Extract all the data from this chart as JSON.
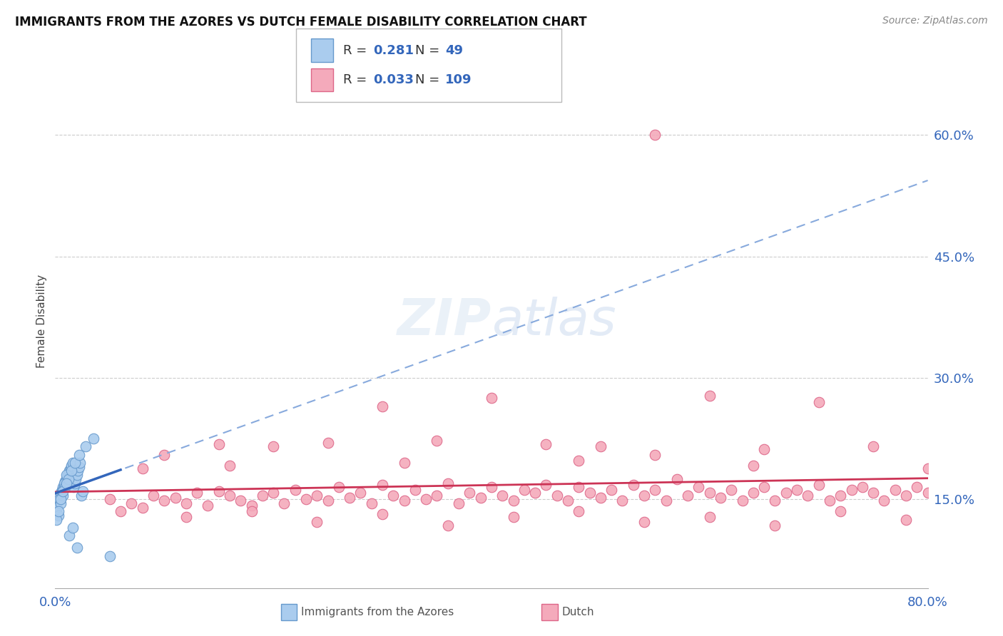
{
  "title": "IMMIGRANTS FROM THE AZORES VS DUTCH FEMALE DISABILITY CORRELATION CHART",
  "source": "Source: ZipAtlas.com",
  "ylabel": "Female Disability",
  "xlim": [
    0.0,
    0.8
  ],
  "ylim": [
    0.04,
    0.7
  ],
  "ytick_positions": [
    0.15,
    0.3,
    0.45,
    0.6
  ],
  "ytick_labels": [
    "15.0%",
    "30.0%",
    "45.0%",
    "60.0%"
  ],
  "series1_color": "#aaccee",
  "series1_edgecolor": "#6699cc",
  "series2_color": "#f4aabb",
  "series2_edgecolor": "#dd6688",
  "series1_R": 0.281,
  "series1_N": 49,
  "series2_R": 0.033,
  "series2_N": 109,
  "series1_label": "Immigrants from the Azores",
  "series2_label": "Dutch",
  "legend_color": "#3366bb",
  "trendline1_solid_color": "#3366bb",
  "trendline1_dash_color": "#88aadd",
  "trendline2_color": "#cc3355",
  "background_color": "#ffffff",
  "series1_x": [
    0.001,
    0.002,
    0.003,
    0.004,
    0.005,
    0.006,
    0.007,
    0.008,
    0.009,
    0.01,
    0.011,
    0.012,
    0.013,
    0.014,
    0.015,
    0.016,
    0.017,
    0.018,
    0.019,
    0.02,
    0.021,
    0.022,
    0.023,
    0.024,
    0.025,
    0.002,
    0.004,
    0.006,
    0.008,
    0.01,
    0.003,
    0.005,
    0.007,
    0.009,
    0.012,
    0.015,
    0.018,
    0.022,
    0.028,
    0.035,
    0.001,
    0.003,
    0.005,
    0.007,
    0.01,
    0.013,
    0.016,
    0.02,
    0.05
  ],
  "series1_y": [
    0.145,
    0.148,
    0.152,
    0.155,
    0.158,
    0.162,
    0.165,
    0.168,
    0.172,
    0.175,
    0.178,
    0.182,
    0.185,
    0.188,
    0.192,
    0.195,
    0.165,
    0.17,
    0.175,
    0.18,
    0.185,
    0.19,
    0.195,
    0.155,
    0.16,
    0.14,
    0.15,
    0.16,
    0.17,
    0.18,
    0.13,
    0.145,
    0.155,
    0.165,
    0.175,
    0.185,
    0.195,
    0.205,
    0.215,
    0.225,
    0.125,
    0.135,
    0.15,
    0.16,
    0.17,
    0.105,
    0.115,
    0.09,
    0.08
  ],
  "series2_x": [
    0.05,
    0.07,
    0.08,
    0.09,
    0.1,
    0.11,
    0.12,
    0.13,
    0.14,
    0.15,
    0.16,
    0.17,
    0.18,
    0.19,
    0.2,
    0.21,
    0.22,
    0.23,
    0.24,
    0.25,
    0.26,
    0.27,
    0.28,
    0.29,
    0.3,
    0.31,
    0.32,
    0.33,
    0.34,
    0.35,
    0.36,
    0.37,
    0.38,
    0.39,
    0.4,
    0.41,
    0.42,
    0.43,
    0.44,
    0.45,
    0.46,
    0.47,
    0.48,
    0.49,
    0.5,
    0.51,
    0.52,
    0.53,
    0.54,
    0.55,
    0.56,
    0.57,
    0.58,
    0.59,
    0.6,
    0.61,
    0.62,
    0.63,
    0.64,
    0.65,
    0.66,
    0.67,
    0.68,
    0.69,
    0.7,
    0.71,
    0.72,
    0.73,
    0.74,
    0.75,
    0.76,
    0.77,
    0.78,
    0.79,
    0.8,
    0.06,
    0.12,
    0.18,
    0.24,
    0.3,
    0.36,
    0.42,
    0.48,
    0.54,
    0.6,
    0.66,
    0.72,
    0.78,
    0.1,
    0.2,
    0.3,
    0.4,
    0.5,
    0.6,
    0.7,
    0.15,
    0.25,
    0.35,
    0.45,
    0.55,
    0.65,
    0.75,
    0.08,
    0.16,
    0.32,
    0.48,
    0.64,
    0.8,
    0.55
  ],
  "series2_y": [
    0.15,
    0.145,
    0.14,
    0.155,
    0.148,
    0.152,
    0.145,
    0.158,
    0.142,
    0.16,
    0.155,
    0.148,
    0.142,
    0.155,
    0.158,
    0.145,
    0.162,
    0.15,
    0.155,
    0.148,
    0.165,
    0.152,
    0.158,
    0.145,
    0.168,
    0.155,
    0.148,
    0.162,
    0.15,
    0.155,
    0.17,
    0.145,
    0.158,
    0.152,
    0.165,
    0.155,
    0.148,
    0.162,
    0.158,
    0.168,
    0.155,
    0.148,
    0.165,
    0.158,
    0.152,
    0.162,
    0.148,
    0.168,
    0.155,
    0.162,
    0.148,
    0.175,
    0.155,
    0.165,
    0.158,
    0.152,
    0.162,
    0.148,
    0.158,
    0.165,
    0.148,
    0.158,
    0.162,
    0.155,
    0.168,
    0.148,
    0.155,
    0.162,
    0.165,
    0.158,
    0.148,
    0.162,
    0.155,
    0.165,
    0.158,
    0.135,
    0.128,
    0.135,
    0.122,
    0.132,
    0.118,
    0.128,
    0.135,
    0.122,
    0.128,
    0.118,
    0.135,
    0.125,
    0.205,
    0.215,
    0.265,
    0.275,
    0.215,
    0.278,
    0.27,
    0.218,
    0.22,
    0.222,
    0.218,
    0.205,
    0.212,
    0.215,
    0.188,
    0.192,
    0.195,
    0.198,
    0.192,
    0.188,
    0.6
  ]
}
